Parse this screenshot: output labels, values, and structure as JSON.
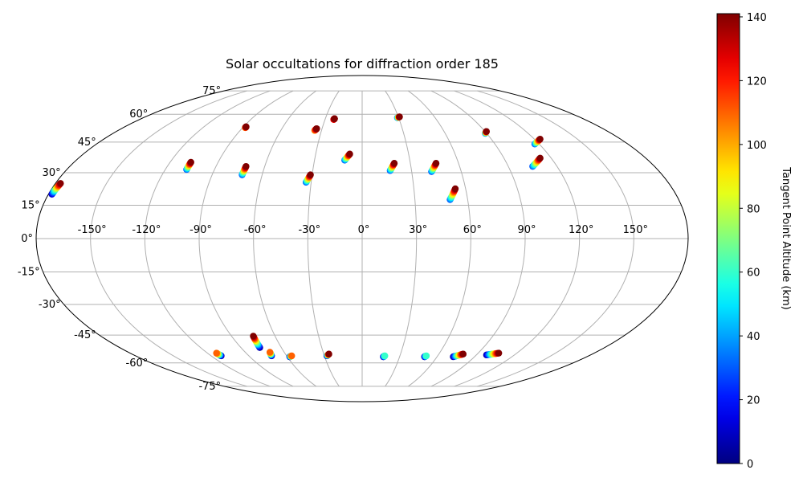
{
  "chart_data": {
    "type": "scatter",
    "projection": "mollweide",
    "title": "Solar occultations for diffraction order 185",
    "grid": true,
    "lon_ticks": [
      -150,
      -120,
      -90,
      -60,
      -30,
      0,
      30,
      60,
      90,
      120,
      150
    ],
    "lat_ticks": [
      -75,
      -60,
      -45,
      -30,
      -15,
      0,
      15,
      30,
      45,
      60,
      75
    ],
    "tick_suffix": "°",
    "colorbar": {
      "label": "Tangent Point Altitude (km)",
      "min": 0,
      "max": 141,
      "ticks": [
        0,
        20,
        40,
        60,
        80,
        100,
        120,
        140
      ],
      "colormap": "jet",
      "position": "right"
    },
    "occultations": [
      {
        "lon": [
          -178,
          -177
        ],
        "lat": [
          20,
          25
        ],
        "alt_range": [
          10,
          140
        ]
      },
      {
        "lon": [
          -107,
          -107
        ],
        "lat": [
          31.5,
          35
        ],
        "alt_range": [
          30,
          141
        ]
      },
      {
        "lon": [
          -72,
          -71.5
        ],
        "lat": [
          29,
          33
        ],
        "alt_range": [
          30,
          141
        ]
      },
      {
        "lon": [
          -88,
          -88
        ],
        "lat": [
          52.5,
          53
        ],
        "alt_range": [
          100,
          141
        ]
      },
      {
        "lon": [
          -35,
          -34
        ],
        "lat": [
          51,
          52
        ],
        "alt_range": [
          100,
          141
        ]
      },
      {
        "lon": [
          -23,
          -22.5
        ],
        "lat": [
          57,
          57.5
        ],
        "alt_range": [
          120,
          141
        ]
      },
      {
        "lon": [
          -33,
          -31
        ],
        "lat": [
          25.5,
          29
        ],
        "alt_range": [
          30,
          141
        ]
      },
      {
        "lon": [
          -11,
          -8
        ],
        "lat": [
          36,
          39
        ],
        "alt_range": [
          30,
          141
        ]
      },
      {
        "lon": [
          17,
          20
        ],
        "lat": [
          31,
          34.5
        ],
        "alt_range": [
          30,
          141
        ]
      },
      {
        "lon": [
          29,
          31
        ],
        "lat": [
          58,
          58.5
        ],
        "alt_range": [
          30,
          141
        ]
      },
      {
        "lon": [
          42,
          46
        ],
        "lat": [
          30.5,
          34.5
        ],
        "alt_range": [
          30,
          141
        ]
      },
      {
        "lon": [
          50,
          54
        ],
        "lat": [
          17.5,
          22.5
        ],
        "alt_range": [
          30,
          141
        ]
      },
      {
        "lon": [
          89,
          91
        ],
        "lat": [
          49.5,
          50.5
        ],
        "alt_range": [
          30,
          141
        ]
      },
      {
        "lon": [
          105,
          113
        ],
        "lat": [
          33,
          37
        ],
        "alt_range": [
          30,
          141
        ]
      },
      {
        "lon": [
          117,
          124
        ],
        "lat": [
          44,
          46.5
        ],
        "alt_range": [
          30,
          141
        ]
      },
      {
        "lon": [
          -112,
          -113
        ],
        "lat": [
          -56,
          -54.5
        ],
        "alt_range": [
          5,
          110
        ]
      },
      {
        "lon": [
          -76,
          -75
        ],
        "lat": [
          -51.5,
          -45.5
        ],
        "alt_range": [
          5,
          141
        ]
      },
      {
        "lon": [
          -72,
          -71
        ],
        "lat": [
          -56,
          -54
        ],
        "alt_range": [
          5,
          110
        ]
      },
      {
        "lon": [
          -58,
          -56
        ],
        "lat": [
          -56.5,
          -56
        ],
        "alt_range": [
          5,
          110
        ]
      },
      {
        "lon": [
          -28,
          -26
        ],
        "lat": [
          -56,
          -55
        ],
        "alt_range": [
          5,
          141
        ]
      },
      {
        "lon": [
          17,
          18
        ],
        "lat": [
          -56.5,
          -56
        ],
        "alt_range": [
          5,
          60
        ]
      },
      {
        "lon": [
          50,
          51
        ],
        "lat": [
          -56.5,
          -56
        ],
        "alt_range": [
          5,
          60
        ]
      },
      {
        "lon": [
          73,
          79
        ],
        "lat": [
          -56.5,
          -55
        ],
        "alt_range": [
          5,
          141
        ]
      },
      {
        "lon": [
          98,
          106
        ],
        "lat": [
          -55.5,
          -54.5
        ],
        "alt_range": [
          5,
          141
        ]
      }
    ]
  }
}
